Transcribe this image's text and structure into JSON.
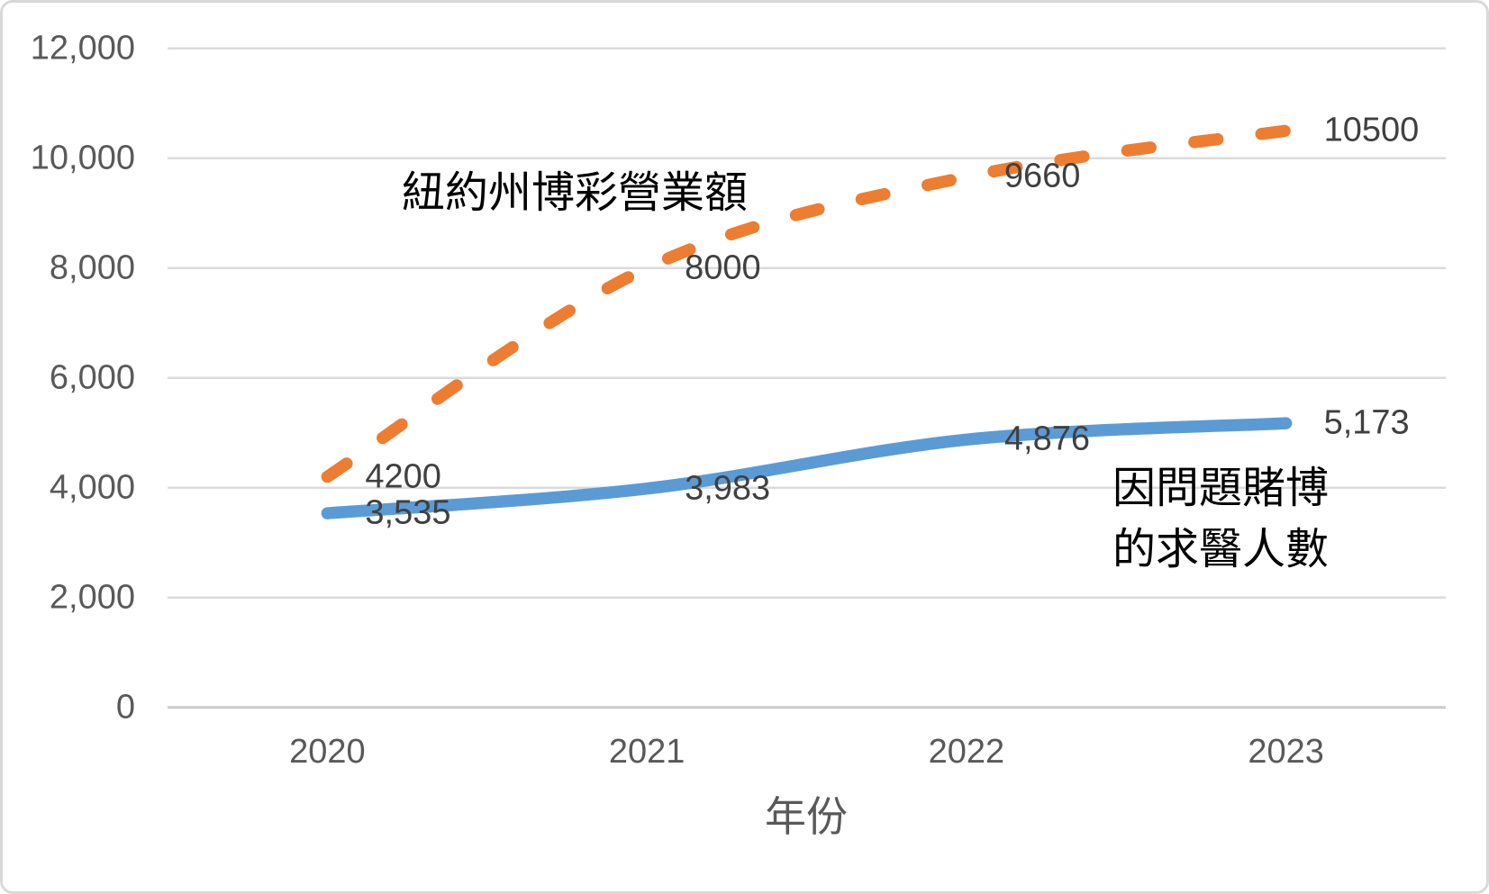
{
  "chart_data": {
    "type": "line",
    "title": "",
    "xlabel": "年份",
    "ylabel": "",
    "categories": [
      "2020",
      "2021",
      "2022",
      "2023"
    ],
    "series": [
      {
        "name": "紐約州博彩營業額",
        "values": [
          4200,
          8000,
          9660,
          10500
        ],
        "point_labels": [
          "4200",
          "8000",
          "9660",
          "10500"
        ],
        "color": "#ED7D31",
        "line_style": "dashed",
        "annotation_lines": [
          "紐約州博彩營業額"
        ]
      },
      {
        "name": "因問題賭博的求醫人數",
        "values": [
          3535,
          3983,
          4876,
          5173
        ],
        "point_labels": [
          "3,535",
          "3,983",
          "4,876",
          "5,173"
        ],
        "color": "#5B9BD5",
        "line_style": "solid",
        "annotation_lines": [
          "因問題賭博",
          "的求醫人數"
        ]
      }
    ],
    "yticks": {
      "values": [
        0,
        2000,
        4000,
        6000,
        8000,
        10000,
        12000
      ],
      "labels": [
        "0",
        "2,000",
        "4,000",
        "6,000",
        "8,000",
        "10,000",
        "12,000"
      ]
    },
    "ylim": [
      0,
      12000
    ],
    "grid": true,
    "legend": "inline-annotations",
    "colors": {
      "grid": "#DBDBDB",
      "axis_line": "#CCCCCC",
      "axis_text": "#595959",
      "data_label": "#404040",
      "annotation_text": "#000000",
      "background": "#FFFFFF",
      "border": "#D9D9D9"
    }
  }
}
